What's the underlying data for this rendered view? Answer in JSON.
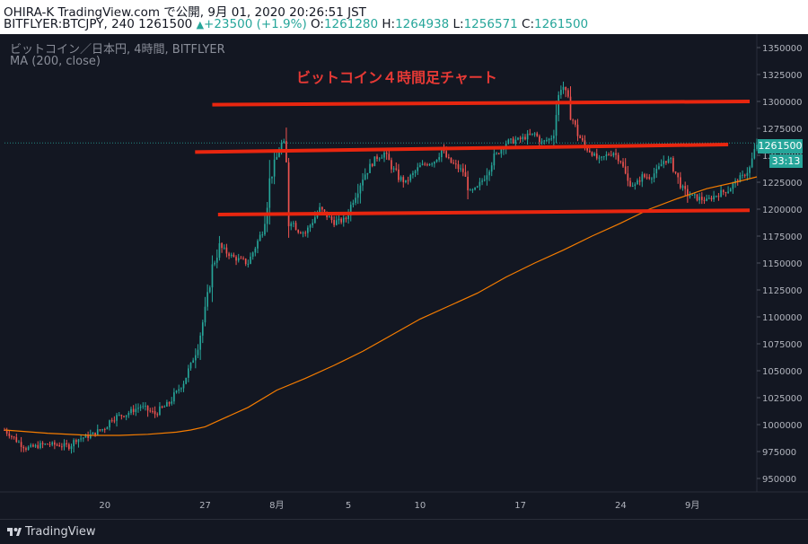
{
  "header": {
    "line1": "OHIRA-K TradingView.com で公開, 9月 01, 2020 20:26:51 JST",
    "symbol_info": "BITFLYER:BTCJPY, 240 1261500",
    "change_arrow": "▲",
    "change": "+23500 (+1.9%)",
    "o_label": "O:",
    "o_value": "1261280",
    "h_label": "H:",
    "h_value": "1264938",
    "l_label": "L:",
    "l_value": "1256571",
    "c_label": "C:",
    "c_value": "1261500"
  },
  "legend": {
    "series": "ビットコイン／日本円, 4時間, BITFLYER",
    "indicator": "MA (200, close)"
  },
  "annotation": "ビットコイン４時間足チャート",
  "price_tag": "1261500",
  "time_tag": "33:13",
  "footer": {
    "logo_text": "TradingView"
  },
  "colors": {
    "background": "#131722",
    "up": "#26a69a",
    "down": "#ef5350",
    "ma": "#f57c00",
    "trendline": "#e8260f"
  },
  "chart_data": {
    "type": "candlestick",
    "title": "ビットコイン４時間足チャート",
    "symbol": "BITFLYER:BTCJPY",
    "interval": "4時間",
    "ylim": [
      937500,
      1362500
    ],
    "y_ticks": [
      950000,
      975000,
      1000000,
      1025000,
      1050000,
      1075000,
      1100000,
      1125000,
      1150000,
      1175000,
      1200000,
      1225000,
      1250000,
      1275000,
      1300000,
      1325000,
      1350000
    ],
    "y_tick_labels": [
      "950000",
      "975000",
      "1000000",
      "1025000",
      "1050000",
      "1075000",
      "1100000",
      "1125000",
      "1150000",
      "1175000",
      "1200000",
      "1225000",
      "1250000",
      "1275000",
      "1300000",
      "1325000",
      "1350000"
    ],
    "x_ticks": [
      "20",
      "27",
      "8月",
      "5",
      "10",
      "17",
      "24",
      "9月"
    ],
    "x_tick_positions": [
      4,
      11,
      16,
      21,
      26,
      33,
      40,
      45
    ],
    "x_range": [
      -3,
      49.5
    ],
    "last_price": 1261500,
    "trendlines": [
      {
        "x0": 11.5,
        "y0": 1297000,
        "x1": 49,
        "y1": 1300000
      },
      {
        "x0": 10.3,
        "y0": 1253000,
        "x1": 47.5,
        "y1": 1260000
      },
      {
        "x0": 11.9,
        "y0": 1195000,
        "x1": 49,
        "y1": 1199000
      }
    ],
    "anchors": [
      [
        -3.0,
        995000
      ],
      [
        -1.5,
        978000
      ],
      [
        0.0,
        982000
      ],
      [
        1.5,
        980000
      ],
      [
        2.0,
        986000
      ],
      [
        3.0,
        990000
      ],
      [
        4.0,
        997000
      ],
      [
        4.5,
        1006000
      ],
      [
        5.5,
        1010000
      ],
      [
        6.5,
        1017000
      ],
      [
        7.5,
        1010000
      ],
      [
        8.5,
        1020000
      ],
      [
        9.0,
        1030000
      ],
      [
        9.5,
        1040000
      ],
      [
        10.0,
        1055000
      ],
      [
        10.5,
        1075000
      ],
      [
        11.0,
        1105000
      ],
      [
        11.5,
        1145000
      ],
      [
        12.0,
        1165000
      ],
      [
        13.0,
        1155000
      ],
      [
        14.0,
        1150000
      ],
      [
        14.5,
        1165000
      ],
      [
        15.0,
        1180000
      ],
      [
        15.5,
        1225000
      ],
      [
        16.0,
        1248000
      ],
      [
        16.3,
        1260000
      ],
      [
        16.6,
        1262000
      ],
      [
        16.8,
        1195000
      ],
      [
        17.5,
        1180000
      ],
      [
        18.0,
        1178000
      ],
      [
        19.0,
        1200000
      ],
      [
        20.0,
        1188000
      ],
      [
        20.8,
        1190000
      ],
      [
        21.5,
        1215000
      ],
      [
        22.0,
        1230000
      ],
      [
        23.0,
        1248000
      ],
      [
        23.5,
        1252000
      ],
      [
        24.0,
        1240000
      ],
      [
        24.5,
        1230000
      ],
      [
        25.0,
        1225000
      ],
      [
        26.0,
        1240000
      ],
      [
        27.0,
        1245000
      ],
      [
        27.5,
        1255000
      ],
      [
        28.0,
        1245000
      ],
      [
        29.0,
        1235000
      ],
      [
        29.5,
        1215000
      ],
      [
        30.0,
        1220000
      ],
      [
        30.5,
        1230000
      ],
      [
        31.0,
        1245000
      ],
      [
        32.0,
        1262000
      ],
      [
        33.0,
        1265000
      ],
      [
        34.0,
        1270000
      ],
      [
        34.5,
        1262000
      ],
      [
        35.0,
        1265000
      ],
      [
        35.3,
        1268000
      ],
      [
        35.6,
        1300000
      ],
      [
        35.9,
        1318000
      ],
      [
        36.2,
        1305000
      ],
      [
        36.6,
        1285000
      ],
      [
        37.0,
        1270000
      ],
      [
        37.5,
        1258000
      ],
      [
        38.0,
        1252000
      ],
      [
        38.5,
        1245000
      ],
      [
        39.0,
        1250000
      ],
      [
        39.5,
        1253000
      ],
      [
        40.0,
        1245000
      ],
      [
        40.5,
        1225000
      ],
      [
        41.0,
        1222000
      ],
      [
        41.5,
        1230000
      ],
      [
        42.0,
        1230000
      ],
      [
        42.5,
        1235000
      ],
      [
        43.0,
        1245000
      ],
      [
        43.5,
        1245000
      ],
      [
        44.0,
        1228000
      ],
      [
        44.5,
        1215000
      ],
      [
        45.0,
        1212000
      ],
      [
        45.5,
        1210000
      ],
      [
        46.0,
        1208000
      ],
      [
        46.5,
        1212000
      ],
      [
        47.0,
        1215000
      ],
      [
        47.5,
        1218000
      ],
      [
        48.0,
        1225000
      ],
      [
        48.5,
        1230000
      ],
      [
        49.0,
        1238000
      ],
      [
        49.5,
        1261000
      ]
    ],
    "ma": {
      "name": "MA (200, close)",
      "points": [
        [
          -3.0,
          995000
        ],
        [
          0.0,
          992000
        ],
        [
          3.0,
          990000
        ],
        [
          5.0,
          990000
        ],
        [
          7.0,
          991000
        ],
        [
          9.0,
          993000
        ],
        [
          10.0,
          995000
        ],
        [
          11.0,
          998000
        ],
        [
          12.0,
          1004000
        ],
        [
          14.0,
          1016000
        ],
        [
          16.0,
          1032000
        ],
        [
          18.0,
          1043000
        ],
        [
          20.0,
          1055000
        ],
        [
          22.0,
          1068000
        ],
        [
          24.0,
          1083000
        ],
        [
          26.0,
          1098000
        ],
        [
          28.0,
          1110000
        ],
        [
          30.0,
          1122000
        ],
        [
          32.0,
          1137000
        ],
        [
          34.0,
          1150000
        ],
        [
          36.0,
          1162000
        ],
        [
          38.0,
          1175000
        ],
        [
          40.0,
          1187000
        ],
        [
          42.0,
          1200000
        ],
        [
          44.0,
          1210000
        ],
        [
          46.0,
          1219000
        ],
        [
          48.0,
          1225000
        ],
        [
          49.5,
          1230000
        ]
      ]
    }
  }
}
